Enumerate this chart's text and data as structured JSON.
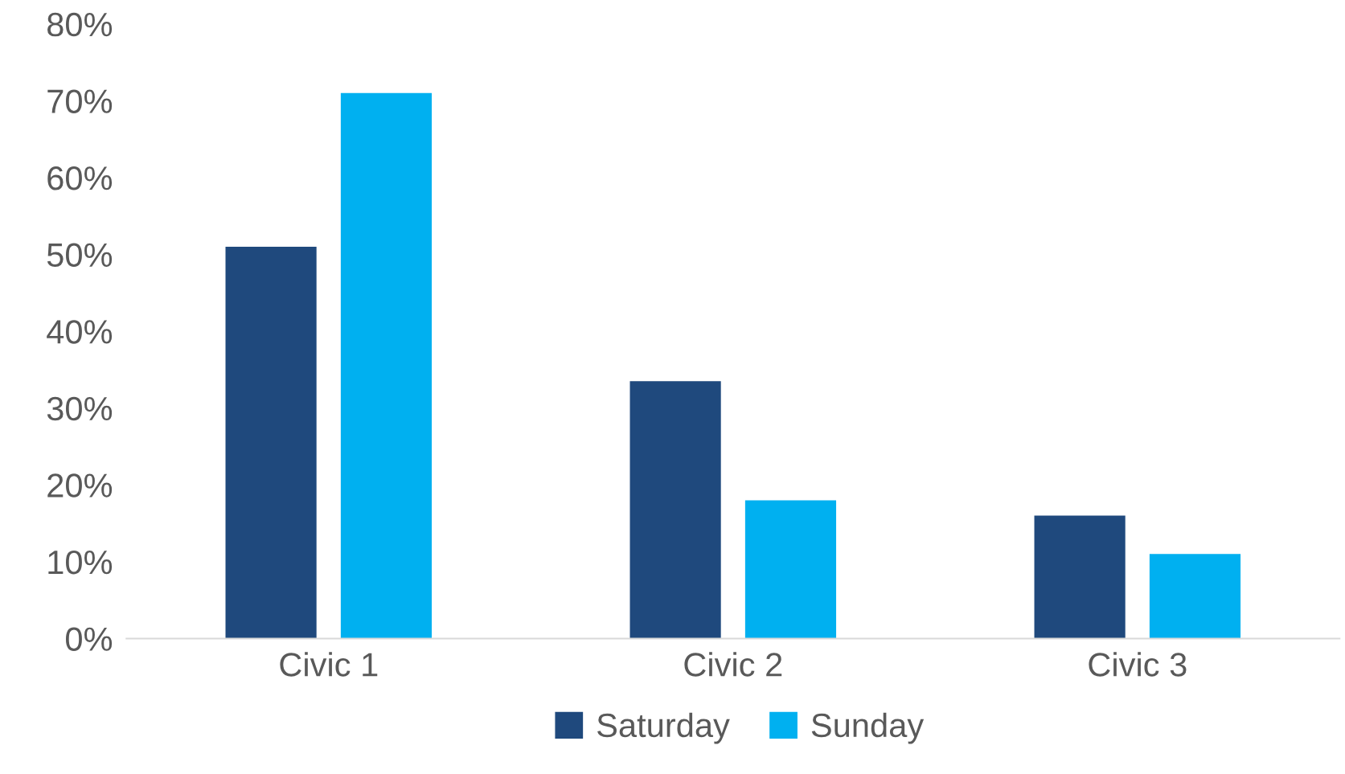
{
  "chart_data": {
    "type": "bar",
    "categories": [
      "Civic 1",
      "Civic 2",
      "Civic 3"
    ],
    "series": [
      {
        "name": "Saturday",
        "color": "#1f497d",
        "values": [
          51,
          33.5,
          16
        ]
      },
      {
        "name": "Sunday",
        "color": "#00b0f0",
        "values": [
          71,
          18,
          11
        ]
      }
    ],
    "ylim": [
      0,
      80
    ],
    "yticks": [
      {
        "value": 0,
        "label": "0%"
      },
      {
        "value": 10,
        "label": "10%"
      },
      {
        "value": 20,
        "label": "20%"
      },
      {
        "value": 30,
        "label": "30%"
      },
      {
        "value": 40,
        "label": "40%"
      },
      {
        "value": 50,
        "label": "50%"
      },
      {
        "value": 60,
        "label": "60%"
      },
      {
        "value": 70,
        "label": "70%"
      },
      {
        "value": 80,
        "label": "80%"
      }
    ],
    "grid": false,
    "legend": "bottom"
  }
}
